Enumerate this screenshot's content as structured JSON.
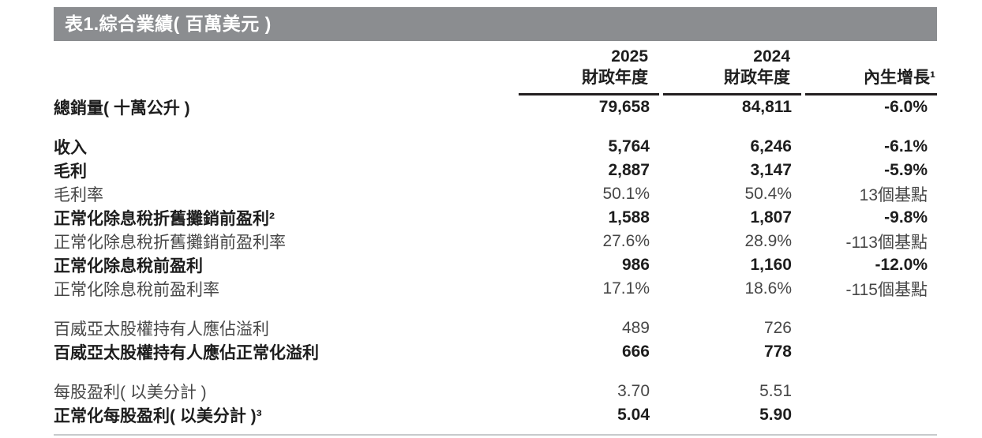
{
  "title_bar": {
    "text": "表1.綜合業績( 百萬美元 )",
    "background": "#8b8d90",
    "text_color": "#ffffff"
  },
  "table": {
    "column_headers": [
      {
        "year": "2025",
        "label": "財政年度"
      },
      {
        "year": "2024",
        "label": "財政年度"
      },
      {
        "label": "內生增長¹"
      }
    ],
    "rows": [
      {
        "label": "總銷量( 十萬公升 )",
        "fy2025": "79,658",
        "fy2024": "84,811",
        "organic_growth": "-6.0%"
      },
      {
        "label": "收入",
        "fy2025": "5,764",
        "fy2024": "6,246",
        "organic_growth": "-6.1%"
      },
      {
        "label": "毛利",
        "fy2025": "2,887",
        "fy2024": "3,147",
        "organic_growth": "-5.9%"
      },
      {
        "label": "毛利率",
        "fy2025": "50.1%",
        "fy2024": "50.4%",
        "organic_growth": "13個基點"
      },
      {
        "label": "正常化除息稅折舊攤銷前盈利²",
        "fy2025": "1,588",
        "fy2024": "1,807",
        "organic_growth": "-9.8%"
      },
      {
        "label": "正常化除息稅折舊攤銷前盈利率",
        "fy2025": "27.6%",
        "fy2024": "28.9%",
        "organic_growth": "-113個基點"
      },
      {
        "label": "正常化除息稅前盈利",
        "fy2025": "986",
        "fy2024": "1,160",
        "organic_growth": "-12.0%"
      },
      {
        "label": "正常化除息稅前盈利率",
        "fy2025": "17.1%",
        "fy2024": "18.6%",
        "organic_growth": "-115個基點"
      },
      {
        "label": "百威亞太股權持有人應佔溢利",
        "fy2025": "489",
        "fy2024": "726",
        "organic_growth": ""
      },
      {
        "label": "百威亞太股權持有人應佔正常化溢利",
        "fy2025": "666",
        "fy2024": "778",
        "organic_growth": ""
      },
      {
        "label": "每股盈利( 以美分計 )",
        "fy2025": "3.70",
        "fy2024": "5.51",
        "organic_growth": ""
      },
      {
        "label": "正常化每股盈利( 以美分計 )³",
        "fy2025": "5.04",
        "fy2024": "5.90",
        "organic_growth": ""
      }
    ]
  },
  "colors": {
    "header_rule": "#231f20",
    "bottom_rule": "#c8cacc"
  }
}
